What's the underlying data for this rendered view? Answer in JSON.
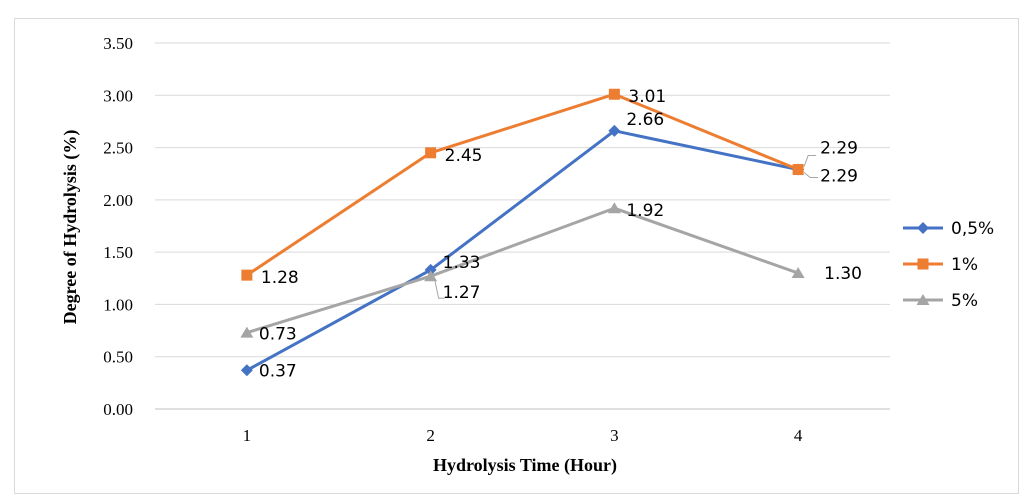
{
  "chart_data": {
    "type": "line",
    "title": "",
    "xlabel": "Hydrolysis Time (Hour)",
    "ylabel": "Degree of Hydrolysis (%)",
    "categories": [
      "1",
      "2",
      "3",
      "4"
    ],
    "ylim": [
      0,
      3.5
    ],
    "yticks": [
      "0.00",
      "0.50",
      "1.00",
      "1.50",
      "2.00",
      "2.50",
      "3.00",
      "3.50"
    ],
    "grid": true,
    "legend_position": "right",
    "series": [
      {
        "name": "0,5%",
        "color": "#4472C4",
        "marker": "diamond",
        "values": [
          0.37,
          1.33,
          2.66,
          2.29
        ],
        "labels": [
          "0.37",
          "1.33",
          "2.66",
          "2.29"
        ]
      },
      {
        "name": "1%",
        "color": "#ED7D31",
        "marker": "square",
        "values": [
          1.28,
          2.45,
          3.01,
          2.29
        ],
        "labels": [
          "1.28",
          "2.45",
          "3.01",
          "2.29"
        ]
      },
      {
        "name": "5%",
        "color": "#A5A5A5",
        "marker": "triangle",
        "values": [
          0.73,
          1.27,
          1.92,
          1.3
        ],
        "labels": [
          "0.73",
          "1.27",
          "1.92",
          "1.30"
        ]
      }
    ]
  }
}
